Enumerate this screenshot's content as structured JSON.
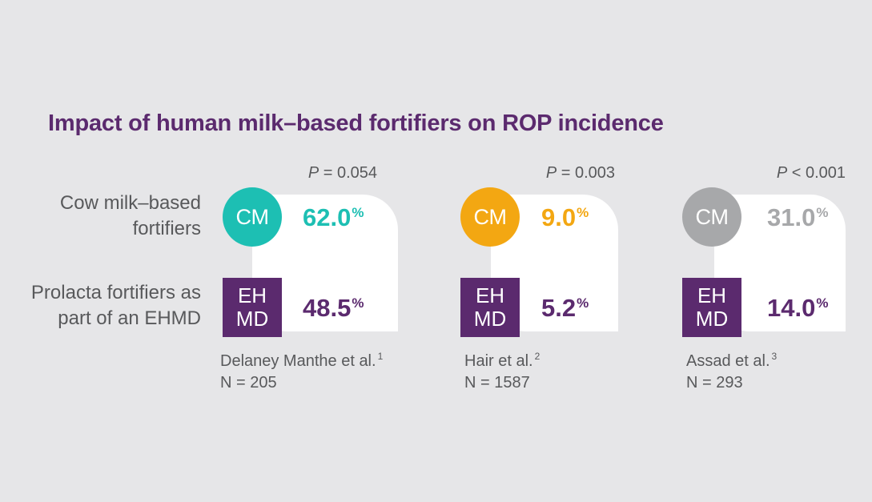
{
  "title": "Impact of human milk–based fortifiers on ROP incidence",
  "row_labels": {
    "cm": [
      "Cow milk–based",
      "fortifiers"
    ],
    "ehmd": [
      "Prolacta fortifiers as",
      "part of an EHMD"
    ]
  },
  "badges": {
    "cm": "CM",
    "ehmd_line1": "EH",
    "ehmd_line2": "MD"
  },
  "percent_symbol": "%",
  "colors": {
    "title": "#5b2a6e",
    "ehmd": "#5b2a6e",
    "study1_cm": "#1dbfb3",
    "study2_cm": "#f3a712",
    "study3_cm": "#a7a8aa",
    "background": "#e6e6e8"
  },
  "chart_data": {
    "type": "table",
    "title": "Impact of human milk–based fortifiers on ROP incidence",
    "unit": "%",
    "studies": [
      {
        "citation": "Delaney Manthe et al.",
        "ref": "1",
        "n_label": "N = 205",
        "p_letter": "P",
        "p_rest": " = 0.054",
        "cm_value": "62.0",
        "ehmd_value": "48.5"
      },
      {
        "citation": "Hair et al.",
        "ref": "2",
        "n_label": "N = 1587",
        "p_letter": "P",
        "p_rest": " = 0.003",
        "cm_value": "9.0",
        "ehmd_value": "5.2"
      },
      {
        "citation": "Assad et al.",
        "ref": "3",
        "n_label": "N = 293",
        "p_letter": "P",
        "p_rest": " < 0.001",
        "cm_value": "31.0",
        "ehmd_value": "14.0"
      }
    ]
  }
}
